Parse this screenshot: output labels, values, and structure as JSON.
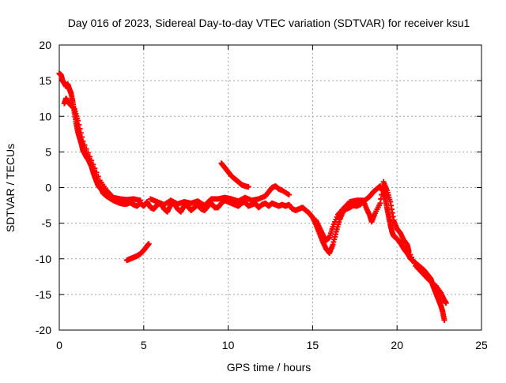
{
  "chart_data": {
    "type": "scatter",
    "title": "Day 016 of 2023, Sidereal Day-to-day VTEC variation (SDTVAR) for receiver ksu1",
    "xlabel": "GPS time / hours",
    "ylabel": "SDTVAR / TECUs",
    "xlim": [
      0,
      25
    ],
    "ylim": [
      -20,
      20
    ],
    "xticks": [
      0,
      5,
      10,
      15,
      20,
      25
    ],
    "yticks": [
      -20,
      -15,
      -10,
      -5,
      0,
      5,
      10,
      15,
      20
    ],
    "xtick_labels": [
      "0",
      "5",
      "10",
      "15",
      "20",
      "25"
    ],
    "ytick_labels": [
      "-20",
      "-15",
      "-10",
      "-5",
      "0",
      "5",
      "10",
      "15",
      "20"
    ],
    "grid": true,
    "marker": "plus",
    "series": [
      {
        "name": "SDTVAR main arc",
        "color": "#ff0000",
        "points": [
          [
            0.0,
            16.0
          ],
          [
            0.1,
            15.8
          ],
          [
            0.2,
            15.0
          ],
          [
            0.3,
            14.6
          ],
          [
            0.4,
            14.2
          ],
          [
            0.5,
            14.5
          ],
          [
            0.6,
            13.8
          ],
          [
            0.7,
            13.2
          ],
          [
            0.8,
            12.0
          ],
          [
            0.9,
            10.5
          ],
          [
            1.0,
            9.0
          ],
          [
            1.1,
            7.8
          ],
          [
            1.2,
            7.0
          ],
          [
            1.3,
            6.2
          ],
          [
            1.4,
            5.2
          ],
          [
            1.5,
            4.8
          ],
          [
            1.6,
            4.3
          ],
          [
            1.7,
            4.0
          ],
          [
            1.8,
            3.5
          ],
          [
            1.9,
            3.0
          ],
          [
            2.0,
            2.2
          ],
          [
            2.1,
            1.5
          ],
          [
            2.2,
            0.9
          ],
          [
            2.3,
            0.3
          ],
          [
            2.4,
            0.0
          ],
          [
            2.5,
            -0.3
          ],
          [
            2.6,
            -0.8
          ],
          [
            2.8,
            -1.2
          ],
          [
            3.0,
            -1.5
          ],
          [
            3.2,
            -1.8
          ],
          [
            3.4,
            -2.0
          ],
          [
            3.6,
            -2.2
          ],
          [
            3.8,
            -2.3
          ],
          [
            4.0,
            -2.3
          ],
          [
            4.2,
            -2.1
          ],
          [
            4.4,
            -2.4
          ],
          [
            4.6,
            -2.6
          ],
          [
            4.8,
            -2.2
          ],
          [
            5.0,
            -2.6
          ],
          [
            5.2,
            -2.0
          ],
          [
            5.4,
            -2.8
          ],
          [
            5.6,
            -3.0
          ],
          [
            5.8,
            -2.4
          ],
          [
            6.0,
            -2.2
          ],
          [
            6.2,
            -3.0
          ],
          [
            6.4,
            -3.4
          ],
          [
            6.6,
            -2.4
          ],
          [
            6.8,
            -2.2
          ],
          [
            7.0,
            -3.0
          ],
          [
            7.2,
            -3.4
          ],
          [
            7.4,
            -2.5
          ],
          [
            7.6,
            -2.6
          ],
          [
            7.8,
            -3.2
          ],
          [
            8.0,
            -2.8
          ],
          [
            8.2,
            -2.4
          ],
          [
            8.4,
            -3.0
          ],
          [
            8.6,
            -3.2
          ],
          [
            8.8,
            -2.6
          ],
          [
            9.0,
            -2.2
          ],
          [
            9.2,
            -2.8
          ],
          [
            9.4,
            -2.8
          ],
          [
            9.6,
            -2.2
          ],
          [
            9.8,
            -1.8
          ],
          [
            10.0,
            -2.0
          ],
          [
            10.2,
            -2.2
          ],
          [
            10.4,
            -2.4
          ],
          [
            10.6,
            -2.6
          ],
          [
            10.8,
            -2.2
          ],
          [
            11.0,
            -2.0
          ],
          [
            11.2,
            -2.6
          ],
          [
            11.4,
            -2.4
          ],
          [
            11.6,
            -2.2
          ],
          [
            11.8,
            -2.8
          ],
          [
            12.0,
            -2.4
          ],
          [
            12.2,
            -2.2
          ],
          [
            12.4,
            -2.6
          ],
          [
            12.6,
            -2.2
          ],
          [
            12.8,
            -2.4
          ],
          [
            13.0,
            -2.6
          ],
          [
            13.2,
            -2.4
          ],
          [
            13.4,
            -2.6
          ],
          [
            13.6,
            -2.4
          ],
          [
            13.8,
            -3.0
          ],
          [
            14.0,
            -3.2
          ],
          [
            14.2,
            -3.0
          ],
          [
            14.4,
            -2.8
          ],
          [
            14.6,
            -3.2
          ],
          [
            14.8,
            -3.6
          ],
          [
            15.0,
            -4.2
          ],
          [
            15.2,
            -5.2
          ],
          [
            15.4,
            -6.4
          ],
          [
            15.6,
            -7.6
          ],
          [
            15.8,
            -8.6
          ],
          [
            16.0,
            -9.2
          ],
          [
            16.2,
            -8.0
          ],
          [
            16.4,
            -6.2
          ],
          [
            16.6,
            -4.5
          ],
          [
            16.8,
            -3.4
          ],
          [
            17.0,
            -3.0
          ],
          [
            17.2,
            -2.8
          ],
          [
            17.4,
            -2.5
          ],
          [
            17.6,
            -2.6
          ],
          [
            17.8,
            -2.4
          ],
          [
            18.0,
            -2.0
          ],
          [
            18.2,
            -1.6
          ],
          [
            18.4,
            -1.2
          ],
          [
            18.6,
            -0.6
          ],
          [
            18.8,
            -0.2
          ],
          [
            19.0,
            0.2
          ],
          [
            19.2,
            -0.5
          ],
          [
            19.3,
            -1.5
          ],
          [
            19.4,
            -2.8
          ],
          [
            19.5,
            -4.0
          ],
          [
            19.6,
            -5.2
          ],
          [
            19.7,
            -6.2
          ],
          [
            19.8,
            -6.8
          ],
          [
            20.0,
            -7.2
          ],
          [
            20.2,
            -7.8
          ],
          [
            20.4,
            -8.6
          ],
          [
            20.6,
            -9.2
          ],
          [
            20.8,
            -10.0
          ],
          [
            21.0,
            -10.4
          ],
          [
            21.2,
            -10.8
          ],
          [
            21.4,
            -11.2
          ],
          [
            21.6,
            -11.6
          ],
          [
            21.8,
            -12.2
          ],
          [
            22.0,
            -12.8
          ],
          [
            22.1,
            -13.6
          ],
          [
            22.2,
            -14.2
          ],
          [
            22.3,
            -14.8
          ],
          [
            22.4,
            -15.4
          ],
          [
            22.5,
            -16.0
          ],
          [
            22.6,
            -16.6
          ],
          [
            22.7,
            -17.4
          ],
          [
            22.8,
            -18.6
          ]
        ]
      },
      {
        "name": "SDTVAR secondary band",
        "color": "#ff0000",
        "points": [
          [
            0.3,
            11.8
          ],
          [
            0.4,
            12.5
          ],
          [
            0.5,
            12.0
          ],
          [
            0.9,
            11.0
          ],
          [
            1.1,
            9.4
          ],
          [
            1.4,
            6.5
          ],
          [
            1.9,
            3.8
          ],
          [
            2.4,
            1.0
          ],
          [
            2.8,
            -0.4
          ],
          [
            3.2,
            -1.4
          ],
          [
            3.6,
            -1.6
          ],
          [
            4.0,
            -1.7
          ],
          [
            4.4,
            -1.6
          ],
          [
            4.8,
            -1.8
          ],
          [
            5.4,
            -1.6
          ],
          [
            5.8,
            -2.0
          ],
          [
            6.2,
            -2.4
          ],
          [
            6.6,
            -1.8
          ],
          [
            7.0,
            -2.3
          ],
          [
            7.4,
            -2.0
          ],
          [
            7.8,
            -2.2
          ],
          [
            8.2,
            -1.9
          ],
          [
            8.6,
            -2.5
          ],
          [
            9.0,
            -1.6
          ],
          [
            9.4,
            -1.6
          ],
          [
            9.8,
            -1.4
          ],
          [
            10.2,
            -1.6
          ],
          [
            10.6,
            -1.9
          ],
          [
            11.0,
            -1.4
          ],
          [
            11.4,
            -1.8
          ],
          [
            11.8,
            -1.6
          ],
          [
            12.2,
            -1.2
          ],
          [
            12.4,
            -0.6
          ],
          [
            12.6,
            0.0
          ],
          [
            12.8,
            0.2
          ],
          [
            13.0,
            -0.2
          ],
          [
            13.2,
            -0.4
          ],
          [
            13.6,
            -1.0
          ],
          [
            15.2,
            -4.6
          ],
          [
            15.4,
            -5.6
          ],
          [
            15.6,
            -6.6
          ],
          [
            15.8,
            -7.4
          ],
          [
            16.0,
            -7.0
          ],
          [
            16.2,
            -5.5
          ],
          [
            16.5,
            -3.8
          ],
          [
            16.8,
            -3.0
          ],
          [
            17.2,
            -2.0
          ],
          [
            17.6,
            -1.8
          ],
          [
            18.0,
            -1.8
          ],
          [
            18.2,
            -3.0
          ],
          [
            18.4,
            -4.0
          ],
          [
            18.5,
            -4.8
          ],
          [
            18.7,
            -3.6
          ],
          [
            19.0,
            -2.2
          ],
          [
            19.2,
            0.8
          ],
          [
            19.4,
            -0.4
          ],
          [
            19.6,
            -2.0
          ],
          [
            19.8,
            -4.6
          ],
          [
            20.0,
            -5.8
          ],
          [
            20.2,
            -6.4
          ],
          [
            20.4,
            -7.4
          ],
          [
            20.6,
            -8.0
          ],
          [
            20.7,
            -9.0
          ],
          [
            21.1,
            -11.0
          ],
          [
            21.5,
            -12.0
          ],
          [
            21.9,
            -13.0
          ],
          [
            22.3,
            -13.8
          ],
          [
            22.6,
            -14.8
          ],
          [
            22.8,
            -15.8
          ],
          [
            22.9,
            -16.2
          ]
        ]
      },
      {
        "name": "SDTVAR short arc ~4-5h",
        "color": "#ff0000",
        "points": [
          [
            4.0,
            -10.2
          ],
          [
            4.2,
            -10.0
          ],
          [
            4.4,
            -9.8
          ],
          [
            4.6,
            -9.6
          ],
          [
            4.8,
            -9.3
          ],
          [
            5.0,
            -8.8
          ],
          [
            5.2,
            -8.2
          ],
          [
            5.3,
            -7.9
          ]
        ]
      },
      {
        "name": "SDTVAR short arc ~9.5-11h",
        "color": "#ff0000",
        "points": [
          [
            9.6,
            3.4
          ],
          [
            9.8,
            2.8
          ],
          [
            10.0,
            2.2
          ],
          [
            10.2,
            1.6
          ],
          [
            10.4,
            1.2
          ],
          [
            10.6,
            0.8
          ],
          [
            10.8,
            0.4
          ],
          [
            11.0,
            0.2
          ],
          [
            11.2,
            0.1
          ]
        ]
      }
    ]
  }
}
